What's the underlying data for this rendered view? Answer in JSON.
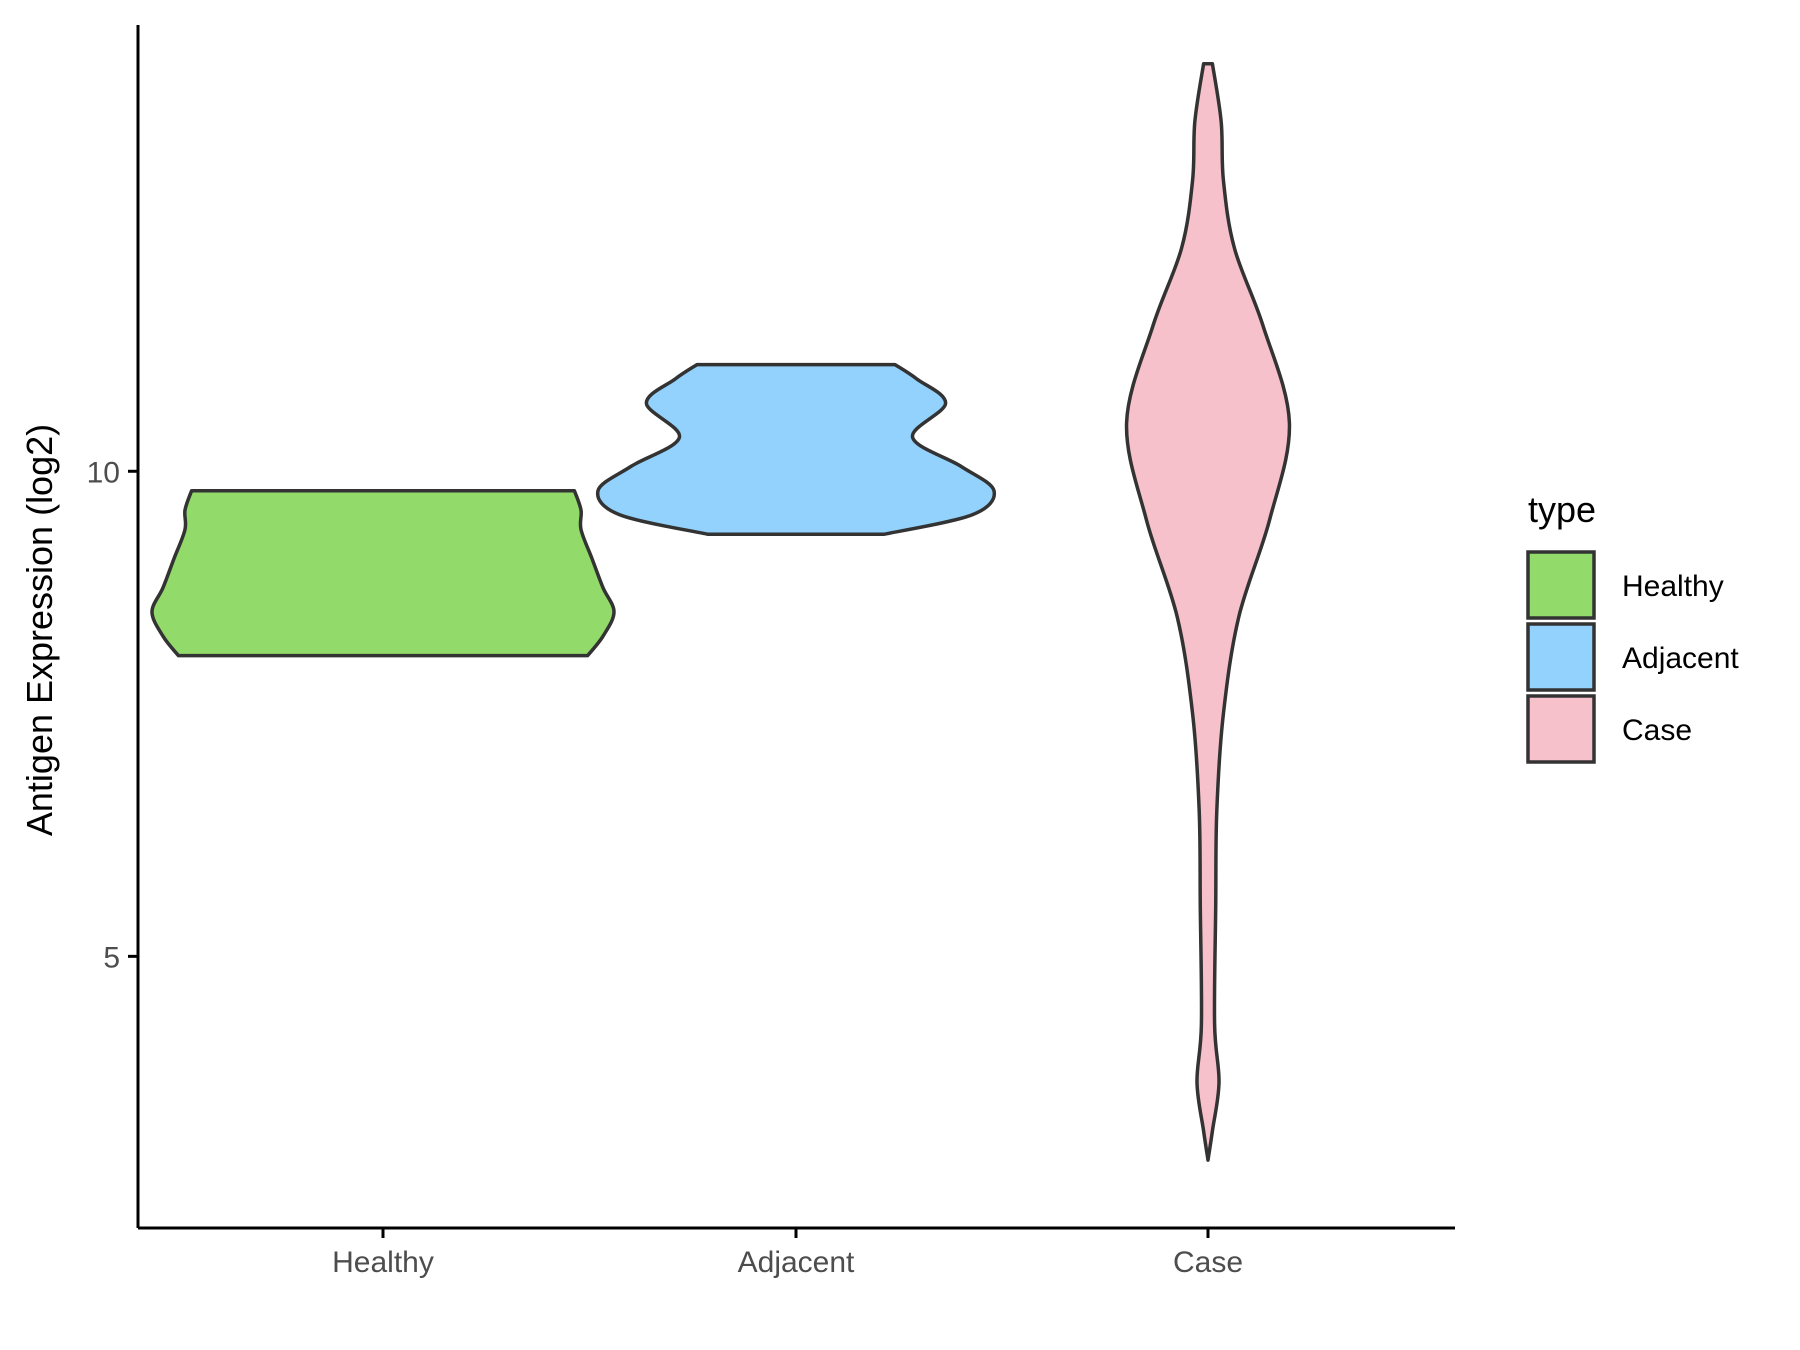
{
  "chart_data": {
    "type": "violin",
    "title": "",
    "xlabel": "",
    "ylabel": "Antigen Expression (log2)",
    "ylim": [
      2.2,
      14.6
    ],
    "yticks": [
      5,
      10
    ],
    "categories": [
      "Healthy",
      "Adjacent",
      "Case"
    ],
    "grid": false,
    "legend": {
      "title": "type",
      "position": "right",
      "entries": [
        "Healthy",
        "Adjacent",
        "Case"
      ]
    },
    "series": [
      {
        "category": "Healthy",
        "color": "#92DB6A",
        "min": 8.1,
        "max": 9.8,
        "density": [
          [
            8.1,
            0.93
          ],
          [
            8.3,
            1.0
          ],
          [
            8.55,
            1.05
          ],
          [
            8.8,
            1.0
          ],
          [
            9.1,
            0.95
          ],
          [
            9.4,
            0.9
          ],
          [
            9.6,
            0.9
          ],
          [
            9.8,
            0.87
          ]
        ]
      },
      {
        "category": "Adjacent",
        "color": "#93D2FC",
        "min": 9.35,
        "max": 11.1,
        "density": [
          [
            9.35,
            0.4
          ],
          [
            9.55,
            0.8
          ],
          [
            9.8,
            0.9
          ],
          [
            10.05,
            0.75
          ],
          [
            10.35,
            0.53
          ],
          [
            10.7,
            0.68
          ],
          [
            10.95,
            0.55
          ],
          [
            11.1,
            0.45
          ]
        ]
      },
      {
        "category": "Case",
        "color": "#F7C1CC",
        "min": 2.9,
        "max": 14.2,
        "density": [
          [
            2.9,
            0.0
          ],
          [
            3.2,
            0.02
          ],
          [
            3.7,
            0.05
          ],
          [
            4.3,
            0.03
          ],
          [
            5.5,
            0.035
          ],
          [
            6.5,
            0.04
          ],
          [
            7.5,
            0.07
          ],
          [
            8.5,
            0.14
          ],
          [
            9.5,
            0.28
          ],
          [
            10.5,
            0.37
          ],
          [
            11.5,
            0.25
          ],
          [
            12.3,
            0.12
          ],
          [
            13.0,
            0.07
          ],
          [
            13.6,
            0.06
          ],
          [
            14.2,
            0.02
          ]
        ]
      }
    ]
  }
}
